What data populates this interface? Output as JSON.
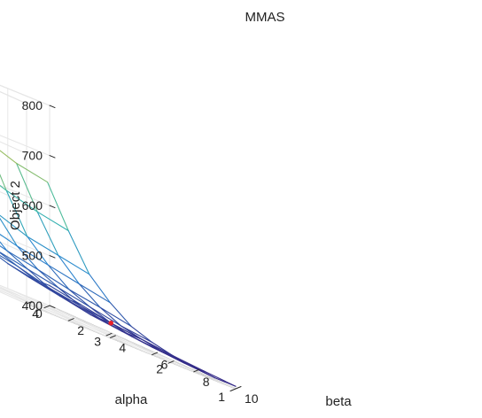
{
  "chart_data": {
    "type": "surface",
    "title": "MMAS",
    "xlabel": "beta",
    "ylabel": "alpha",
    "zlabel": "Object 2",
    "x_ticks": [
      "0",
      "2",
      "4",
      "6",
      "8",
      "10"
    ],
    "y_ticks": [
      "1",
      "2",
      "3",
      "4"
    ],
    "z_ticks": [
      "400",
      "500",
      "600",
      "700",
      "800"
    ],
    "xlim": [
      0,
      10
    ],
    "ylim": [
      1,
      4
    ],
    "zlim": [
      400,
      800
    ],
    "grid": true,
    "beta": [
      1,
      2,
      3,
      4,
      5,
      6,
      7,
      8,
      9,
      10
    ],
    "alpha": [
      1,
      1.5,
      2,
      2.5,
      3,
      3.5,
      4
    ],
    "z_rows_by_alpha": [
      [
        660,
        580,
        510,
        470,
        440,
        425,
        415,
        410,
        405,
        405
      ],
      [
        670,
        590,
        520,
        480,
        450,
        430,
        420,
        412,
        407,
        407
      ],
      [
        690,
        605,
        530,
        490,
        458,
        440,
        425,
        415,
        410,
        410
      ],
      [
        715,
        625,
        550,
        500,
        470,
        450,
        432,
        422,
        415,
        415
      ],
      [
        745,
        650,
        570,
        515,
        480,
        460,
        440,
        430,
        420,
        420
      ],
      [
        775,
        675,
        590,
        530,
        495,
        470,
        455,
        440,
        430,
        430
      ],
      [
        800,
        690,
        605,
        540,
        505,
        480,
        465,
        450,
        440,
        440
      ]
    ],
    "highlight_point": {
      "beta": 7,
      "alpha": 2,
      "z": 425,
      "color": "#e8202a"
    },
    "colormap": "parula"
  }
}
